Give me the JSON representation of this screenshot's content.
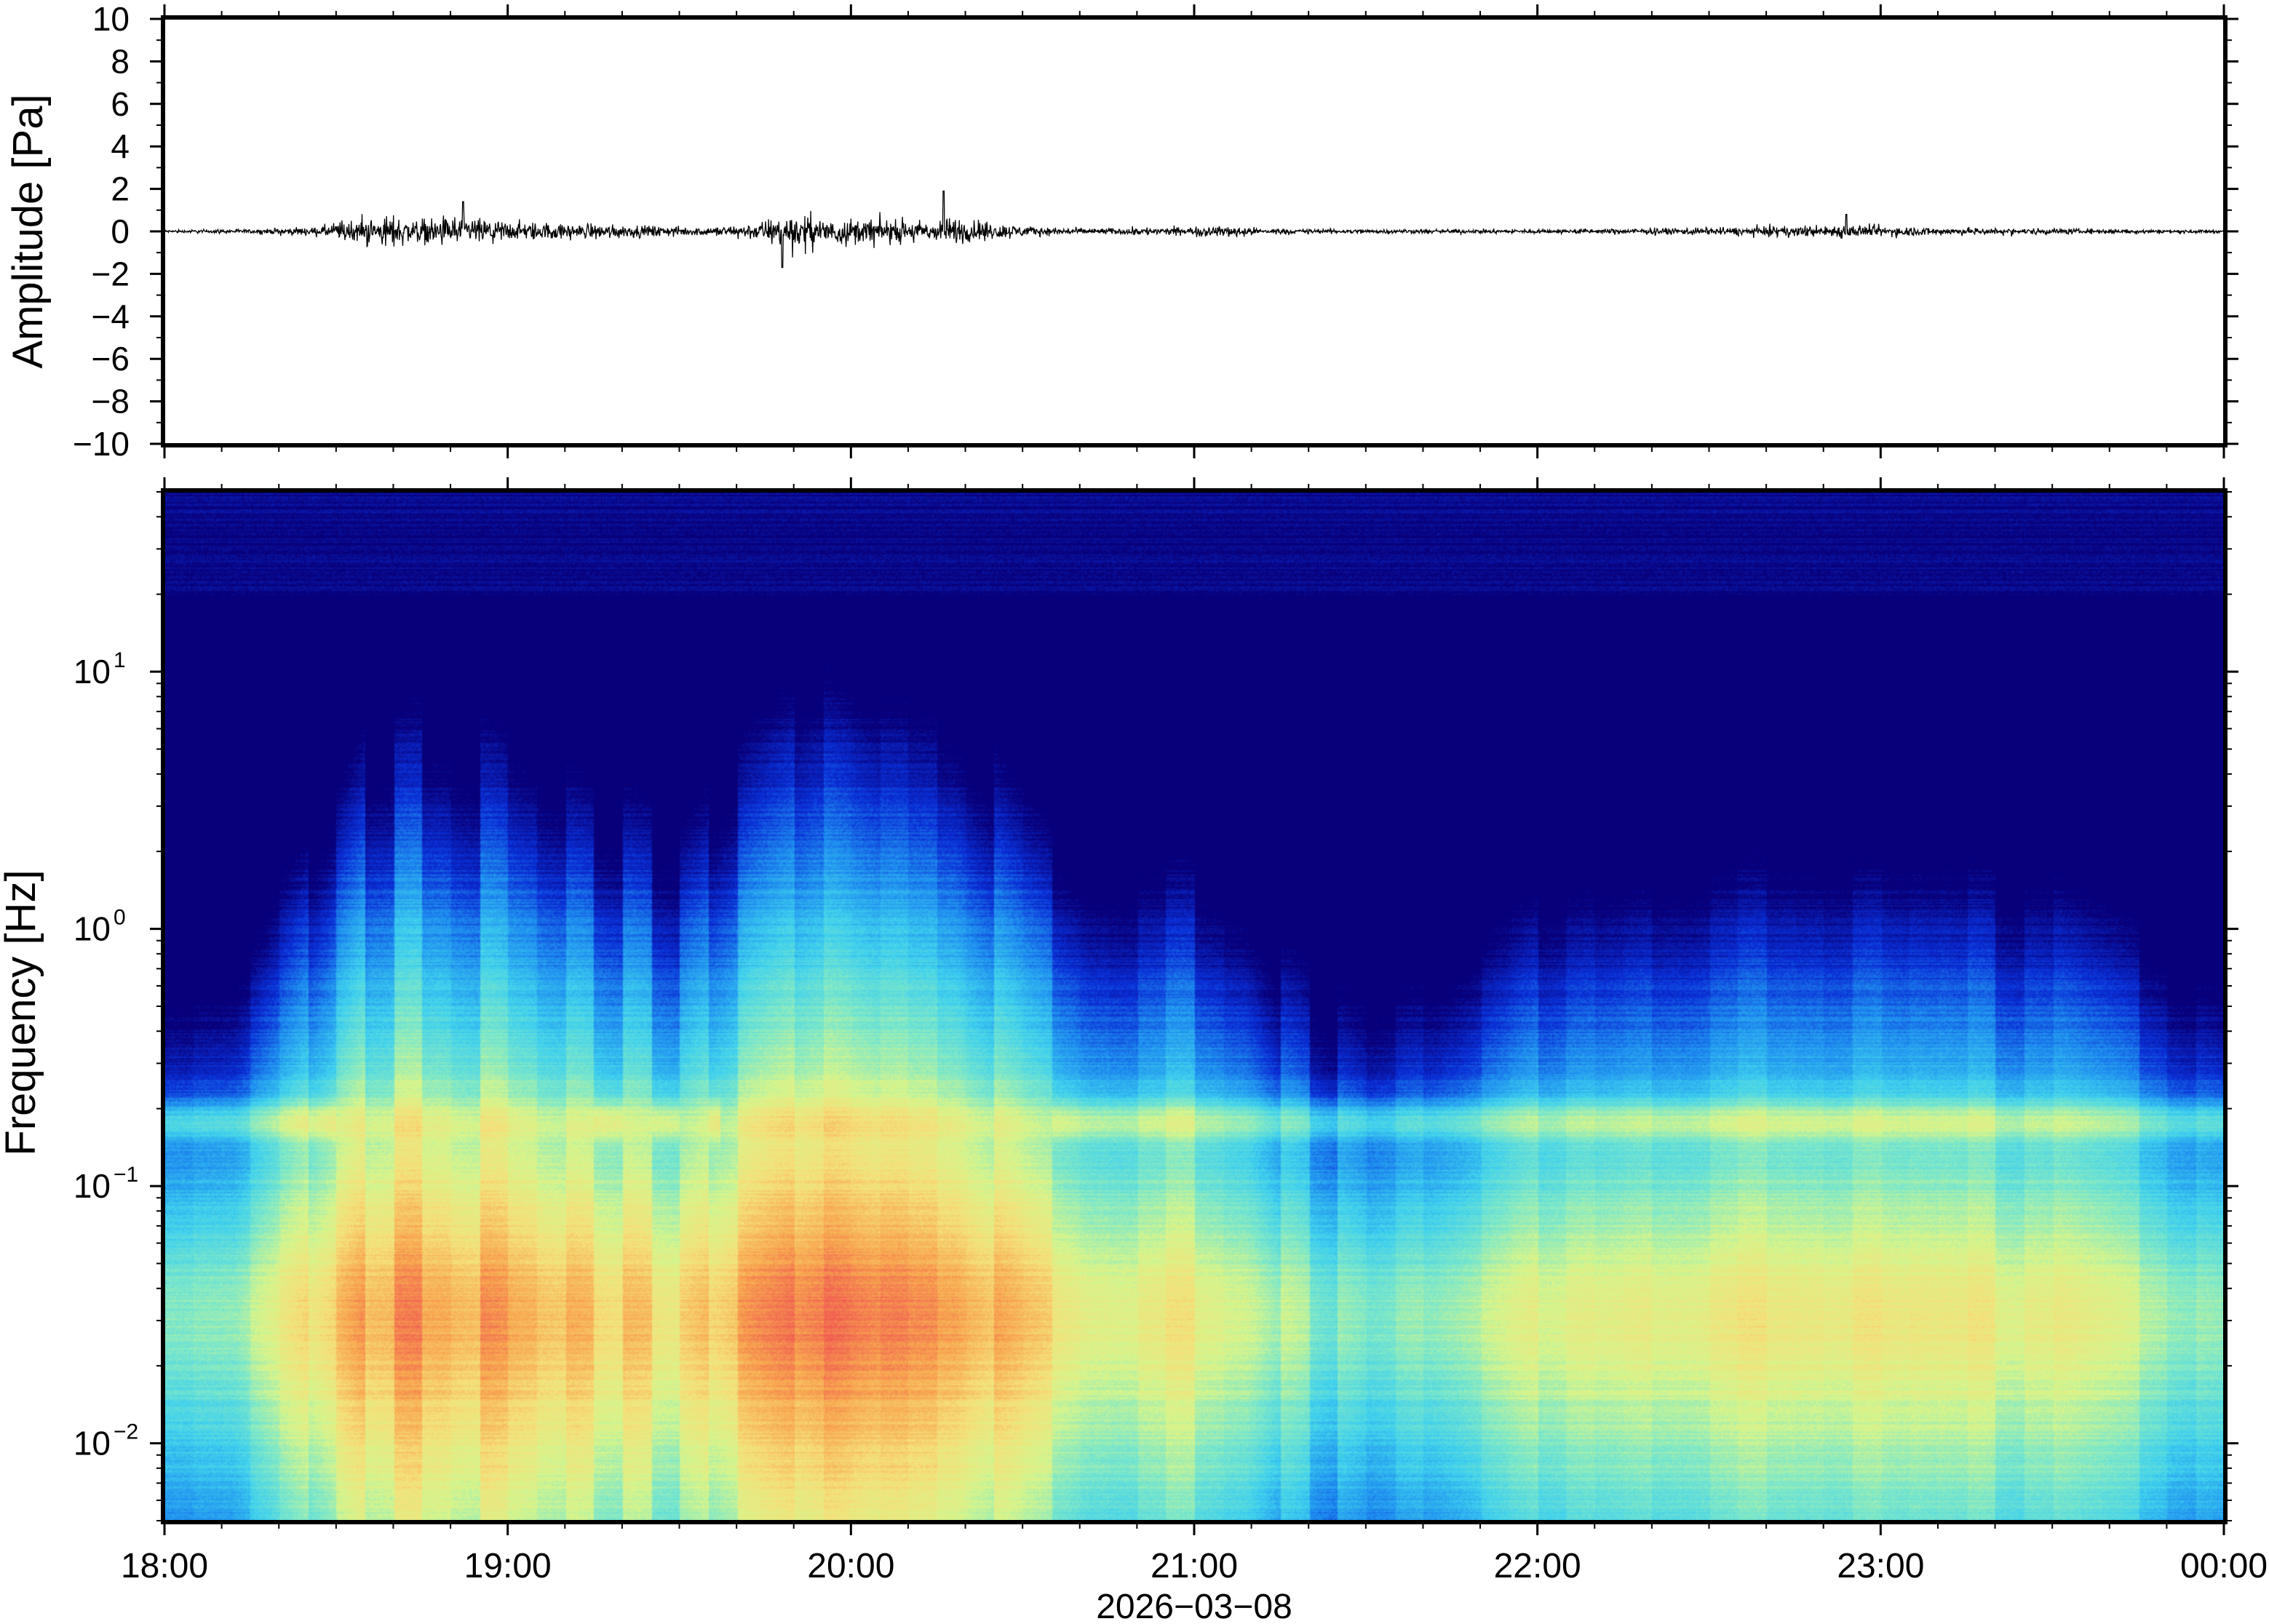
{
  "chart_data": [
    {
      "type": "line",
      "panel": "waveform",
      "ylabel": "Amplitude [Pa]",
      "ylim": [
        -10,
        10
      ],
      "yticks": [
        10,
        8,
        6,
        4,
        2,
        0,
        -2,
        -4,
        -6,
        -8,
        -10
      ],
      "ytick_labels": [
        "10",
        "8",
        "6",
        "4",
        "2",
        "0",
        "−2",
        "−4",
        "−6",
        "−8",
        "−10"
      ],
      "xlim_hours": [
        18,
        24
      ],
      "envelope": {
        "time_hours": [
          18.0,
          18.25,
          18.45,
          18.55,
          18.65,
          18.75,
          18.85,
          18.9,
          19.0,
          19.1,
          19.25,
          19.4,
          19.55,
          19.72,
          19.8,
          19.9,
          20.0,
          20.15,
          20.25,
          20.3,
          20.45,
          20.55,
          20.7,
          21.0,
          21.1,
          21.2,
          21.5,
          22.0,
          22.5,
          22.9,
          23.2,
          23.5,
          24.0
        ],
        "amplitude_pa": [
          0.1,
          0.15,
          0.3,
          0.9,
          1.0,
          0.8,
          1.1,
          0.9,
          0.7,
          0.6,
          0.5,
          0.4,
          0.3,
          0.5,
          1.2,
          1.0,
          0.9,
          0.8,
          0.7,
          1.0,
          0.5,
          0.3,
          0.2,
          0.3,
          0.4,
          0.2,
          0.15,
          0.15,
          0.25,
          0.45,
          0.25,
          0.2,
          0.1
        ]
      },
      "spikes": [
        {
          "time_hours": 18.87,
          "amplitude_pa": 1.4
        },
        {
          "time_hours": 19.8,
          "amplitude_pa": -1.7
        },
        {
          "time_hours": 20.27,
          "amplitude_pa": 1.9
        },
        {
          "time_hours": 22.9,
          "amplitude_pa": 0.8
        }
      ]
    },
    {
      "type": "heatmap",
      "panel": "spectrogram",
      "ylabel": "Frequency [Hz]",
      "yscale": "log",
      "ylim_hz": [
        0.005,
        50
      ],
      "yticks_hz": [
        0.01,
        0.1,
        1,
        10
      ],
      "ytick_labels": [
        {
          "base": "10",
          "exp": "−2"
        },
        {
          "base": "10",
          "exp": "−1"
        },
        {
          "base": "10",
          "exp": "0"
        },
        {
          "base": "10",
          "exp": "1"
        }
      ],
      "colormap": [
        "#08007a",
        "#0a2fd6",
        "#1f8fef",
        "#3fd0ee",
        "#7fe8c8",
        "#d6f58c",
        "#f5e07a",
        "#f8a850",
        "#f05a50"
      ],
      "power_profile": {
        "time_hours": [
          18.0,
          18.2,
          18.4,
          18.6,
          18.8,
          19.0,
          19.3,
          19.5,
          19.7,
          19.9,
          20.1,
          20.3,
          20.5,
          20.7,
          21.0,
          21.15,
          21.25,
          21.5,
          21.7,
          22.0,
          22.5,
          23.0,
          23.5,
          24.0
        ],
        "relative_level": [
          0.45,
          0.45,
          0.62,
          0.8,
          0.82,
          0.78,
          0.72,
          0.68,
          0.8,
          0.88,
          0.82,
          0.82,
          0.7,
          0.62,
          0.62,
          0.6,
          0.5,
          0.38,
          0.42,
          0.55,
          0.62,
          0.65,
          0.58,
          0.45
        ]
      },
      "microbarom_band_hz": 0.18
    }
  ],
  "xaxis": {
    "tick_labels": [
      "18:00",
      "19:00",
      "20:00",
      "21:00",
      "22:00",
      "23:00",
      "00:00"
    ],
    "date_label": "2026−03−08"
  },
  "colors": {
    "frame": "#000000",
    "trace": "#000000",
    "background": "#ffffff"
  }
}
